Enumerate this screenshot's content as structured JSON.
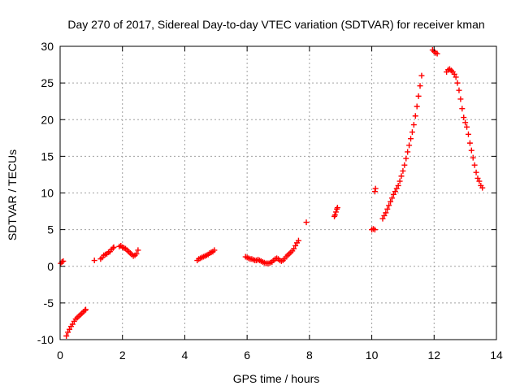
{
  "chart_data": {
    "type": "scatter",
    "title": "Day 270 of 2017, Sidereal Day-to-day VTEC variation (SDTVAR) for receiver kman",
    "xlabel": "GPS time / hours",
    "ylabel": "SDTVAR / TECUs",
    "xlim": [
      0,
      14
    ],
    "ylim": [
      -10,
      30
    ],
    "x_ticks": [
      0,
      2,
      4,
      6,
      8,
      10,
      12,
      14
    ],
    "y_ticks": [
      -10,
      -5,
      0,
      5,
      10,
      15,
      20,
      25,
      30
    ],
    "grid": true,
    "marker": "+",
    "series": [
      {
        "color": "#ff0000",
        "points": [
          [
            0.02,
            0.4
          ],
          [
            0.06,
            0.6
          ],
          [
            0.1,
            0.7
          ],
          [
            0.2,
            -9.5
          ],
          [
            0.25,
            -9.0
          ],
          [
            0.3,
            -8.6
          ],
          [
            0.35,
            -8.2
          ],
          [
            0.4,
            -7.9
          ],
          [
            0.45,
            -7.5
          ],
          [
            0.5,
            -7.2
          ],
          [
            0.55,
            -7.0
          ],
          [
            0.6,
            -6.8
          ],
          [
            0.65,
            -6.6
          ],
          [
            0.7,
            -6.4
          ],
          [
            0.75,
            -6.2
          ],
          [
            0.8,
            -6.0
          ],
          [
            0.82,
            -5.9
          ],
          [
            1.1,
            0.8
          ],
          [
            1.3,
            1.0
          ],
          [
            1.35,
            1.2
          ],
          [
            1.4,
            1.5
          ],
          [
            1.45,
            1.6
          ],
          [
            1.5,
            1.7
          ],
          [
            1.55,
            1.9
          ],
          [
            1.6,
            2.0
          ],
          [
            1.65,
            2.3
          ],
          [
            1.7,
            2.5
          ],
          [
            1.72,
            2.6
          ],
          [
            1.9,
            2.7
          ],
          [
            1.95,
            2.8
          ],
          [
            2.0,
            2.6
          ],
          [
            2.05,
            2.5
          ],
          [
            2.1,
            2.4
          ],
          [
            2.15,
            2.2
          ],
          [
            2.2,
            2.0
          ],
          [
            2.25,
            1.8
          ],
          [
            2.3,
            1.6
          ],
          [
            2.35,
            1.4
          ],
          [
            2.4,
            1.5
          ],
          [
            2.45,
            1.7
          ],
          [
            2.5,
            2.2
          ],
          [
            4.4,
            0.8
          ],
          [
            4.45,
            1.0
          ],
          [
            4.5,
            1.1
          ],
          [
            4.55,
            1.2
          ],
          [
            4.6,
            1.3
          ],
          [
            4.65,
            1.4
          ],
          [
            4.7,
            1.5
          ],
          [
            4.75,
            1.6
          ],
          [
            4.8,
            1.8
          ],
          [
            4.85,
            1.9
          ],
          [
            4.9,
            2.0
          ],
          [
            4.95,
            2.2
          ],
          [
            5.95,
            1.3
          ],
          [
            6.0,
            1.2
          ],
          [
            6.05,
            1.1
          ],
          [
            6.1,
            1.0
          ],
          [
            6.15,
            1.0
          ],
          [
            6.2,
            0.9
          ],
          [
            6.25,
            0.8
          ],
          [
            6.3,
            0.8
          ],
          [
            6.35,
            0.9
          ],
          [
            6.4,
            0.8
          ],
          [
            6.45,
            0.7
          ],
          [
            6.5,
            0.6
          ],
          [
            6.55,
            0.5
          ],
          [
            6.6,
            0.4
          ],
          [
            6.65,
            0.4
          ],
          [
            6.7,
            0.4
          ],
          [
            6.75,
            0.5
          ],
          [
            6.8,
            0.6
          ],
          [
            6.85,
            0.8
          ],
          [
            6.9,
            1.0
          ],
          [
            6.95,
            1.1
          ],
          [
            7.0,
            1.0
          ],
          [
            7.05,
            0.8
          ],
          [
            7.1,
            0.7
          ],
          [
            7.15,
            0.8
          ],
          [
            7.2,
            1.0
          ],
          [
            7.25,
            1.3
          ],
          [
            7.3,
            1.5
          ],
          [
            7.35,
            1.7
          ],
          [
            7.4,
            1.9
          ],
          [
            7.45,
            2.1
          ],
          [
            7.5,
            2.4
          ],
          [
            7.55,
            2.8
          ],
          [
            7.6,
            3.2
          ],
          [
            7.65,
            3.5
          ],
          [
            7.9,
            6.0
          ],
          [
            8.8,
            6.8
          ],
          [
            8.82,
            7.0
          ],
          [
            8.85,
            7.4
          ],
          [
            8.88,
            7.8
          ],
          [
            8.9,
            8.0
          ],
          [
            10.0,
            5.0
          ],
          [
            10.05,
            5.1
          ],
          [
            10.1,
            5.0
          ],
          [
            10.1,
            10.2
          ],
          [
            10.12,
            10.6
          ],
          [
            10.35,
            6.5
          ],
          [
            10.4,
            6.9
          ],
          [
            10.45,
            7.3
          ],
          [
            10.5,
            7.8
          ],
          [
            10.55,
            8.3
          ],
          [
            10.6,
            8.8
          ],
          [
            10.65,
            9.3
          ],
          [
            10.7,
            9.8
          ],
          [
            10.75,
            10.2
          ],
          [
            10.8,
            10.6
          ],
          [
            10.85,
            11.0
          ],
          [
            10.9,
            11.6
          ],
          [
            10.95,
            12.3
          ],
          [
            11.0,
            13.0
          ],
          [
            11.05,
            13.8
          ],
          [
            11.1,
            14.7
          ],
          [
            11.15,
            15.6
          ],
          [
            11.2,
            16.5
          ],
          [
            11.25,
            17.4
          ],
          [
            11.3,
            18.3
          ],
          [
            11.35,
            19.3
          ],
          [
            11.4,
            20.5
          ],
          [
            11.45,
            21.8
          ],
          [
            11.5,
            23.2
          ],
          [
            11.55,
            24.6
          ],
          [
            11.6,
            26.0
          ],
          [
            11.95,
            29.5
          ],
          [
            12.0,
            29.3
          ],
          [
            12.05,
            29.1
          ],
          [
            12.1,
            29.0
          ],
          [
            12.4,
            26.5
          ],
          [
            12.45,
            26.8
          ],
          [
            12.5,
            26.9
          ],
          [
            12.55,
            26.7
          ],
          [
            12.6,
            26.5
          ],
          [
            12.65,
            26.2
          ],
          [
            12.7,
            25.8
          ],
          [
            12.75,
            25.0
          ],
          [
            12.8,
            24.0
          ],
          [
            12.85,
            22.8
          ],
          [
            12.9,
            21.5
          ],
          [
            12.95,
            20.3
          ],
          [
            13.0,
            19.6
          ],
          [
            13.05,
            19.0
          ],
          [
            13.1,
            18.0
          ],
          [
            13.15,
            16.8
          ],
          [
            13.2,
            15.8
          ],
          [
            13.25,
            14.8
          ],
          [
            13.3,
            13.8
          ],
          [
            13.35,
            12.8
          ],
          [
            13.4,
            12.0
          ],
          [
            13.45,
            11.6
          ],
          [
            13.5,
            11.0
          ],
          [
            13.55,
            10.7
          ]
        ]
      }
    ]
  }
}
